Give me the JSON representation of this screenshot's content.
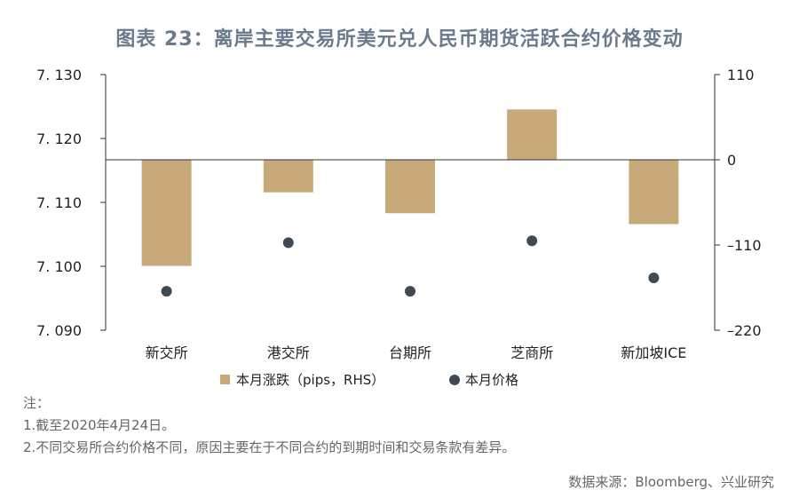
{
  "chart_data": {
    "type": "bar",
    "title": "图表 23：离岸主要交易所美元兑人民币期货活跃合约价格变动",
    "categories": [
      "新交所",
      "港交所",
      "台期所",
      "芝商所",
      "新加坡ICE"
    ],
    "series": [
      {
        "name": "本月涨跌（pips，RHS）",
        "kind": "bar",
        "axis": "right",
        "color": "#c8a97a",
        "values": [
          -137,
          -42,
          -69,
          65,
          -83
        ]
      },
      {
        "name": "本月价格",
        "kind": "scatter",
        "axis": "left",
        "color": "#3f4a55",
        "values": [
          7.0961,
          7.1037,
          7.0961,
          7.104,
          7.0982
        ]
      }
    ],
    "y_left": {
      "min": 7.09,
      "max": 7.13,
      "ticks": [
        "7. 130",
        "7. 120",
        "7. 110",
        "7. 100",
        "7. 090"
      ],
      "tick_values": [
        7.13,
        7.12,
        7.11,
        7.1,
        7.09
      ]
    },
    "y_right": {
      "min": -220,
      "max": 110,
      "ticks": [
        "110",
        "0",
        "–110",
        "–220"
      ],
      "tick_values": [
        110,
        0,
        -110,
        -220
      ]
    },
    "legend": [
      {
        "label": "本月涨跌（pips，RHS）",
        "symbol": "square",
        "color": "#c8a97a"
      },
      {
        "label": "本月价格",
        "symbol": "circle",
        "color": "#3f4a55"
      }
    ],
    "legend_position": "bottom",
    "grid": false
  },
  "notes": {
    "heading": "注：",
    "lines": [
      "1.截至2020年4月24日。",
      "2.不同交易所合约价格不同，原因主要在于不同合约的到期时间和交易条款有差异。"
    ]
  },
  "source": "数据来源：Bloomberg、兴业研究"
}
